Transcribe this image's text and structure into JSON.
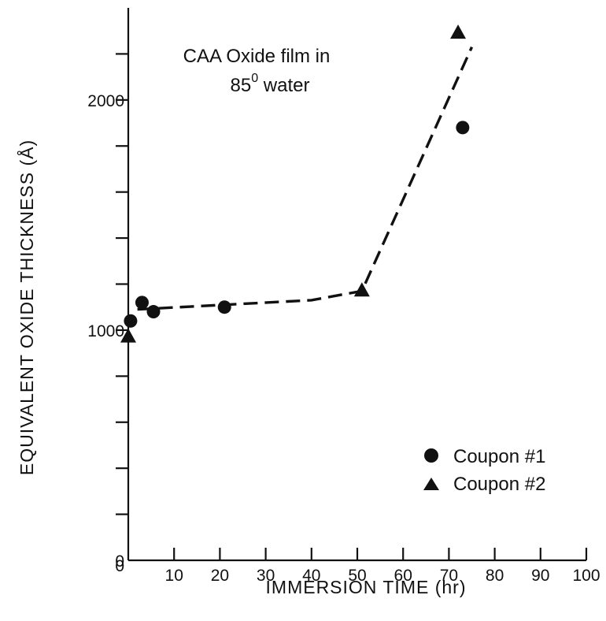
{
  "chart_data": {
    "type": "scatter",
    "title": "",
    "xlabel": "IMMERSION TIME (hr)",
    "ylabel": "EQUIVALENT OXIDE THICKNESS (Å)",
    "xlim": [
      0,
      100
    ],
    "ylim": [
      0,
      2400
    ],
    "x_ticks": [
      10,
      20,
      30,
      40,
      50,
      60,
      70,
      80,
      90,
      100
    ],
    "x_tick_labels": [
      "10",
      "20",
      "30",
      "40",
      "50",
      "60",
      "70",
      "80",
      "90",
      "100"
    ],
    "x_origin_label": "0",
    "y_ticks": [
      200,
      400,
      600,
      800,
      1000,
      1200,
      1400,
      1600,
      1800,
      2000,
      2200
    ],
    "y_labeled_ticks": [
      0,
      1000,
      2000
    ],
    "y_tick_labels": [
      "0",
      "1000",
      "2000"
    ],
    "grid": false,
    "legend_position": "bottom-right",
    "annotation": {
      "line1": "CAA Oxide film in",
      "line2_prefix": "85",
      "line2_sup": "0",
      "line2_suffix": " water"
    },
    "series": [
      {
        "name": "Coupon #1",
        "marker": "circle",
        "x": [
          0.5,
          3,
          5.5,
          21,
          73
        ],
        "y": [
          1040,
          1120,
          1080,
          1100,
          1880
        ]
      },
      {
        "name": "Coupon #2",
        "marker": "triangle",
        "x": [
          0,
          51,
          72
        ],
        "y": [
          970,
          1170,
          2290
        ]
      }
    ],
    "trend_line": {
      "style": "dashed",
      "x": [
        2,
        40,
        51,
        75
      ],
      "y": [
        1090,
        1130,
        1170,
        2230
      ]
    }
  }
}
